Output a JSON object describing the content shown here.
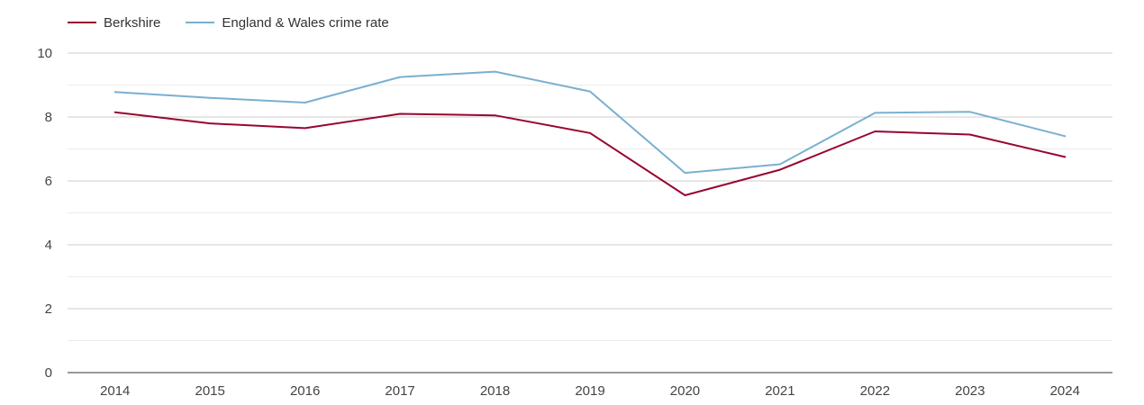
{
  "chart_data": {
    "type": "line",
    "title": "",
    "xlabel": "",
    "ylabel": "",
    "categories": [
      "2014",
      "2015",
      "2016",
      "2017",
      "2018",
      "2019",
      "2020",
      "2021",
      "2022",
      "2023",
      "2024"
    ],
    "ylim": [
      0,
      10
    ],
    "yticks": [
      0,
      2,
      4,
      6,
      8,
      10
    ],
    "grid": true,
    "legend_position": "top-left",
    "series": [
      {
        "name": "Berkshire",
        "color": "#99052f",
        "values": [
          8.15,
          7.8,
          7.65,
          8.1,
          8.05,
          7.5,
          5.55,
          6.35,
          7.55,
          7.45,
          6.75
        ]
      },
      {
        "name": "England & Wales crime rate",
        "color": "#7aafd0",
        "values": [
          8.78,
          8.6,
          8.45,
          9.25,
          9.42,
          8.8,
          6.25,
          6.52,
          8.13,
          8.16,
          7.4
        ]
      }
    ]
  }
}
